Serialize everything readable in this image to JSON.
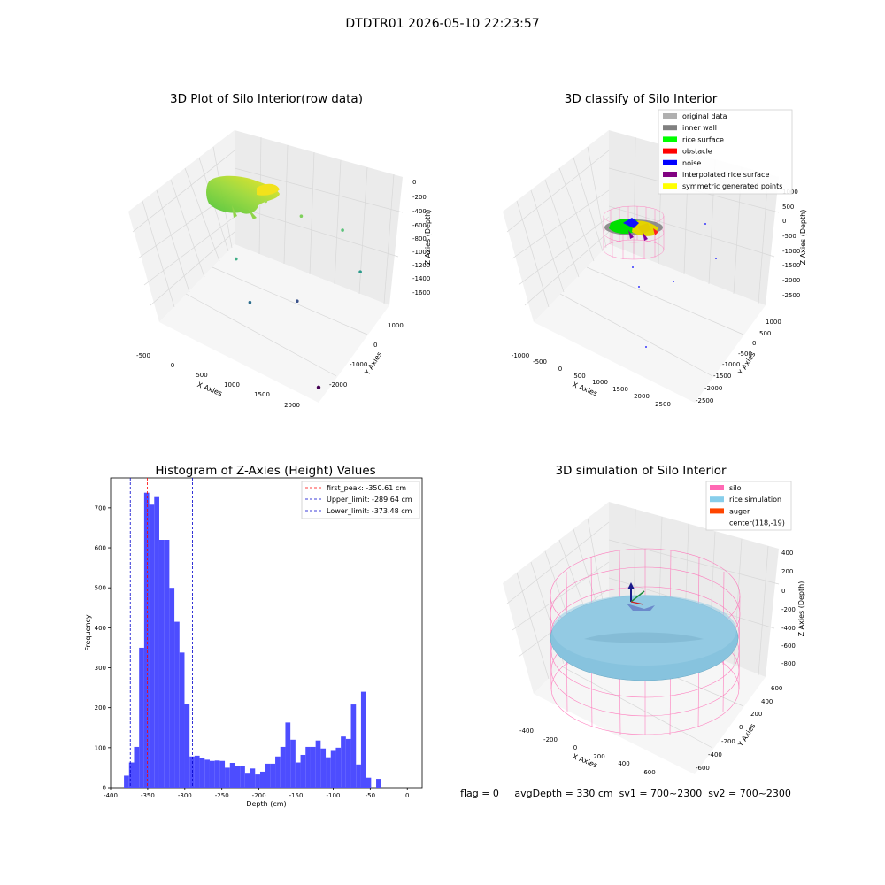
{
  "figure": {
    "suptitle": "DTDTR01 2026-05-10 22:23:57",
    "footer": "flag = 0     avgDepth = 330 cm  sv1 = 700~2300  sv2 = 700~2300"
  },
  "colors": {
    "hist_bar": "#4d4dff",
    "first_peak": "#ff0000",
    "limit_lines": "#0000cc",
    "silo_wire": "#ff69b4",
    "rice": "#87c3de",
    "auger": "#ff4500",
    "pane": "#f2f2f2",
    "grid": "#d0d0d0"
  },
  "chart_data": [
    {
      "type": "scatter3d",
      "title": "3D Plot of Silo Interior(row data)",
      "xlabel": "X Axies",
      "ylabel": "Y Axies",
      "zlabel": "Z Axies (Depth)",
      "x_ticks": [
        "-500",
        "0",
        "500",
        "1000",
        "1500",
        "2000"
      ],
      "y_ticks": [
        "1000",
        "0",
        "-1000",
        "-2000"
      ],
      "z_ticks": [
        "0",
        "-200",
        "-400",
        "-600",
        "-800",
        "-1000",
        "-1200",
        "-1400",
        "-1600"
      ],
      "xlim": [
        -600,
        2100
      ],
      "ylim": [
        -2400,
        1400
      ],
      "zlim": [
        -1700,
        100
      ],
      "cluster": {
        "x_range": [
          -300,
          400
        ],
        "y_range": [
          -400,
          400
        ],
        "z_range": [
          -450,
          -250
        ],
        "colormap": "viridis"
      },
      "outliers": [
        {
          "x": 500,
          "y": -300,
          "z": -350
        },
        {
          "x": 900,
          "y": 300,
          "z": -600
        },
        {
          "x": 1400,
          "y": 900,
          "z": -800
        },
        {
          "x": 300,
          "y": -1200,
          "z": -900
        },
        {
          "x": 1800,
          "y": 600,
          "z": -1100
        },
        {
          "x": 600,
          "y": -1400,
          "z": -1300
        },
        {
          "x": 1200,
          "y": -800,
          "z": -1250
        },
        {
          "x": 2000,
          "y": -2100,
          "z": -1650
        }
      ]
    },
    {
      "type": "scatter3d",
      "title": "3D classify of Silo Interior",
      "xlabel": "X Axies",
      "ylabel": "Y Axies",
      "zlabel": "Z Axies (Depth)",
      "x_ticks": [
        "-1000",
        "-500",
        "0",
        "500",
        "1000",
        "1500",
        "2000",
        "2500"
      ],
      "y_ticks": [
        "1000",
        "500",
        "0",
        "-500",
        "-1000",
        "-1500",
        "-2000",
        "-2500"
      ],
      "z_ticks": [
        "1000",
        "500",
        "0",
        "-500",
        "-1000",
        "-1500",
        "-2000",
        "-2500"
      ],
      "legend": [
        {
          "label": "original data",
          "color": "#b0b0b0"
        },
        {
          "label": "inner wall",
          "color": "#808080"
        },
        {
          "label": "rice surface",
          "color": "#00ff00"
        },
        {
          "label": "obstacle",
          "color": "#ff0000"
        },
        {
          "label": "noise",
          "color": "#0000ff"
        },
        {
          "label": "interpolated rice surface",
          "color": "#800080"
        },
        {
          "label": "symmetric generated points",
          "color": "#ffff00"
        }
      ]
    },
    {
      "type": "bar",
      "title": "Histogram of Z-Axies (Height) Values",
      "xlabel": "Depth (cm)",
      "ylabel": "Frequency",
      "xlim": [
        -400,
        20
      ],
      "ylim": [
        0,
        775
      ],
      "x_ticks": [
        -400,
        -350,
        -300,
        -250,
        -200,
        -150,
        -100,
        -50,
        0
      ],
      "y_ticks": [
        0,
        100,
        200,
        300,
        400,
        500,
        600,
        700
      ],
      "bin_start": -382,
      "bin_width": 6.8,
      "values": [
        30,
        63,
        102,
        350,
        738,
        708,
        727,
        620,
        620,
        500,
        415,
        338,
        210,
        78,
        80,
        74,
        70,
        67,
        68,
        67,
        50,
        62,
        55,
        55,
        35,
        48,
        33,
        40,
        60,
        60,
        78,
        102,
        163,
        120,
        63,
        82,
        102,
        102,
        118,
        98,
        76,
        92,
        100,
        128,
        122,
        208,
        58,
        240,
        25,
        0,
        22
      ],
      "vlines": [
        {
          "x": -350.61,
          "label": "first_peak: -350.61 cm",
          "color": "#ff0000"
        },
        {
          "x": -289.64,
          "label": "Upper_limit: -289.64 cm",
          "color": "#0000cc"
        },
        {
          "x": -373.48,
          "label": "Lower_limit: -373.48 cm",
          "color": "#0000cc"
        }
      ]
    },
    {
      "type": "surface3d",
      "title": "3D simulation of Silo Interior",
      "xlabel": "X Axies",
      "ylabel": "Y Axies",
      "zlabel": "Z Axies (Depth)",
      "x_ticks": [
        "-400",
        "-200",
        "0",
        "200",
        "400",
        "600"
      ],
      "y_ticks": [
        "600",
        "400",
        "200",
        "0",
        "-200",
        "-400",
        "-600"
      ],
      "z_ticks": [
        "400",
        "200",
        "0",
        "-200",
        "-400",
        "-600",
        "-800"
      ],
      "legend": [
        {
          "label": "silo",
          "color": "#ff69b4"
        },
        {
          "label": "rice simulation",
          "color": "#87ceeb"
        },
        {
          "label": "auger",
          "color": "#ff4500"
        },
        {
          "label": "center(118,-19)",
          "color": "none"
        }
      ]
    }
  ]
}
